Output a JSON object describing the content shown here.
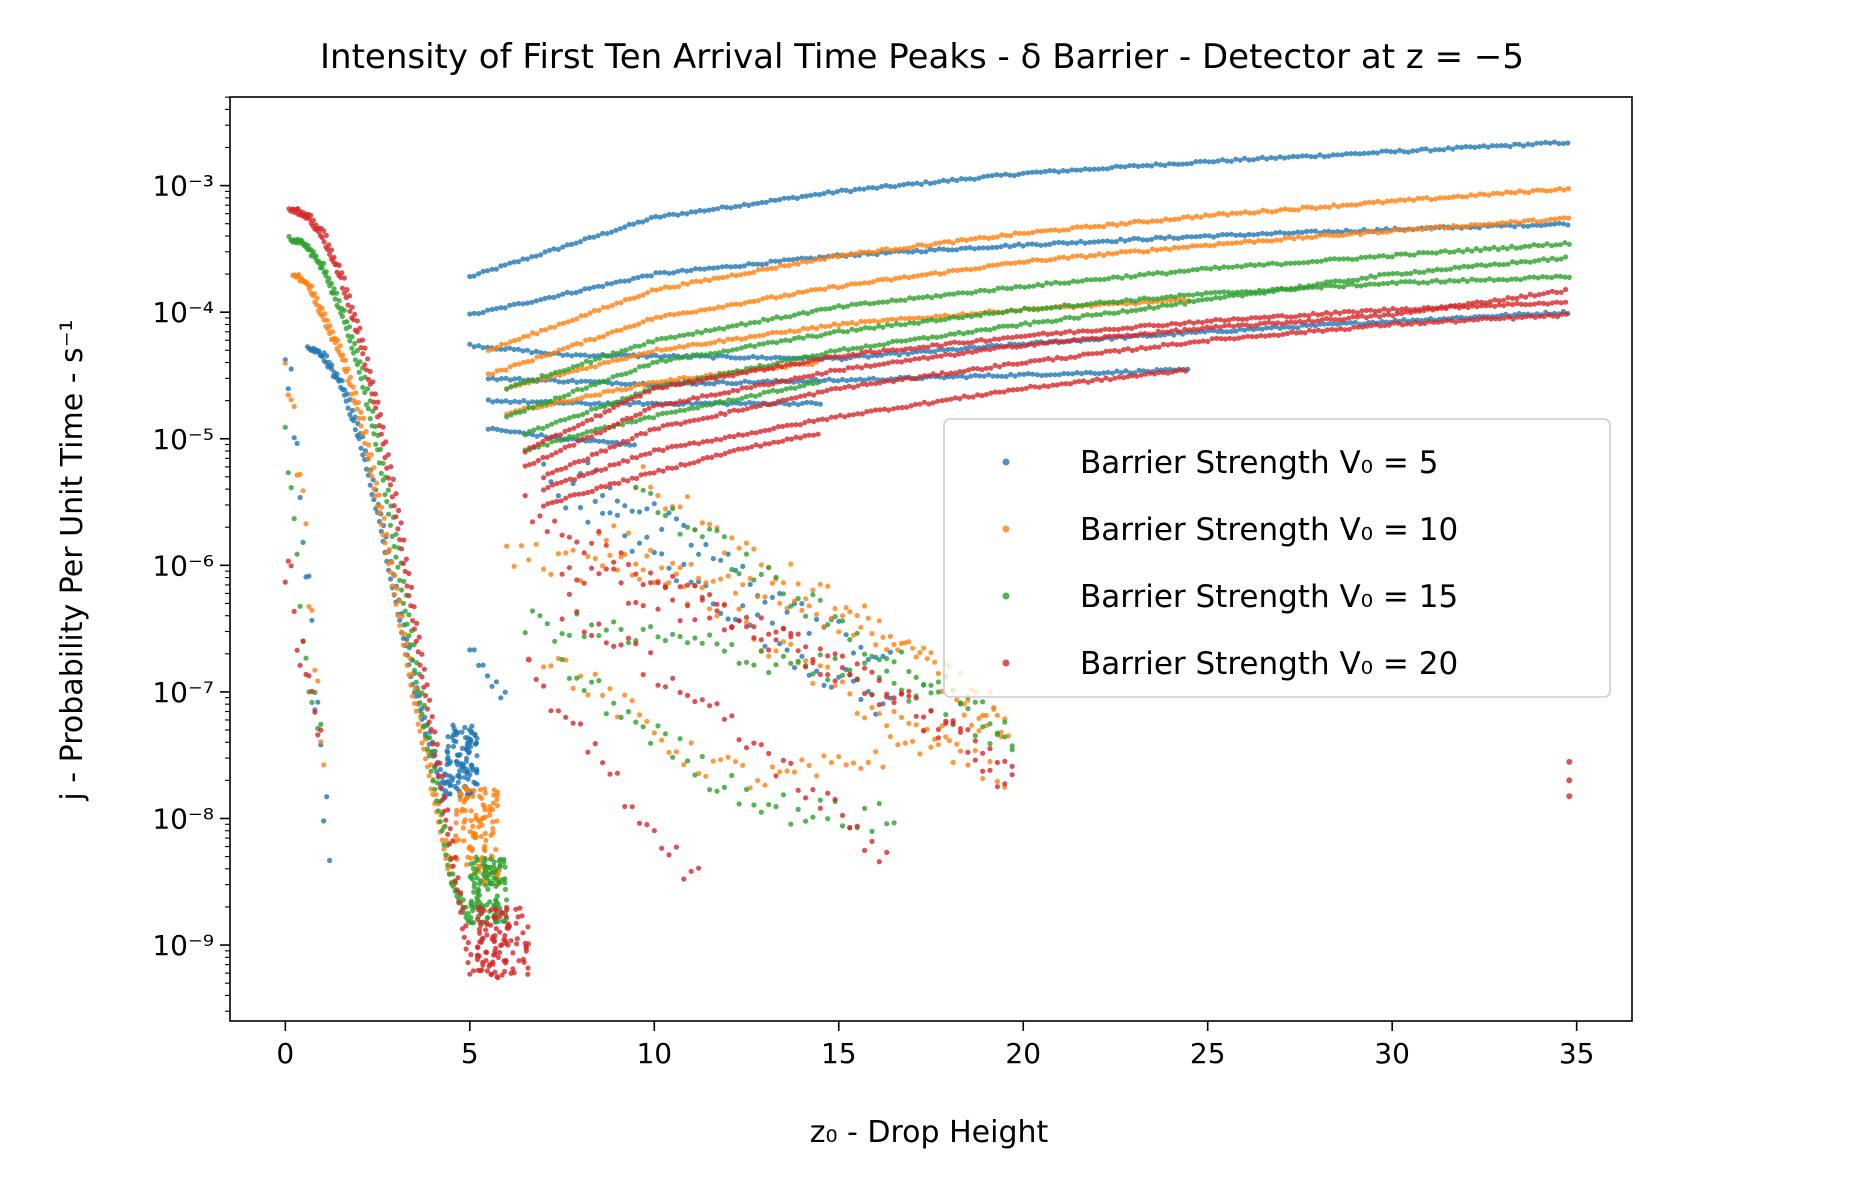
{
  "chart_data": {
    "type": "scatter",
    "title": "Intensity of First Ten Arrival Time Peaks - δ Barrier - Detector at z = −5",
    "xlabel": "z₀ - Drop Height",
    "ylabel": "j - Probability Per Unit Time - s⁻¹",
    "xlim": [
      -1.5,
      36.5
    ],
    "ylim_log10": [
      -9.6,
      -2.3
    ],
    "yscale": "log",
    "grid": false,
    "legend_position": "center-right",
    "x_ticks": [
      0,
      5,
      10,
      15,
      20,
      25,
      30,
      35
    ],
    "x_tick_labels": [
      "0",
      "5",
      "10",
      "15",
      "20",
      "25",
      "30",
      "35"
    ],
    "y_ticks_log10": [
      -9,
      -8,
      -7,
      -6,
      -5,
      -4,
      -3
    ],
    "y_tick_labels": [
      "10⁻⁹",
      "10⁻⁸",
      "10⁻⁷",
      "10⁻⁶",
      "10⁻⁵",
      "10⁻⁴",
      "10⁻³"
    ],
    "series": [
      {
        "name": "Barrier Strength V₀ = 5",
        "color": "#1f77b4",
        "upper_branches": [
          {
            "x": [
              5.0,
              10,
              15,
              20,
              25,
              30,
              34.8
            ],
            "y": [
              0.00019,
              0.00056,
              0.0009,
              0.00125,
              0.00155,
              0.00185,
              0.0022
            ]
          },
          {
            "x": [
              5.0,
              10,
              15,
              20,
              25,
              30,
              34.8
            ],
            "y": [
              9.5e-05,
              0.0002,
              0.00028,
              0.00034,
              0.0004,
              0.00045,
              0.0005
            ]
          },
          {
            "x": [
              5.0,
              7.5,
              10,
              15,
              20,
              25,
              30,
              34.8
            ],
            "y": [
              5.5e-05,
              4.6e-05,
              4.5e-05,
              4.3e-05,
              5.6e-05,
              7e-05,
              8.5e-05,
              0.0001
            ]
          },
          {
            "x": [
              5.5,
              10,
              15,
              20,
              24.5
            ],
            "y": [
              3e-05,
              2.7e-05,
              2.9e-05,
              3.2e-05,
              3.5e-05
            ]
          },
          {
            "x": [
              5.5,
              8,
              10,
              12,
              14.5
            ],
            "y": [
              2e-05,
              1.9e-05,
              1.9e-05,
              1.9e-05,
              1.9e-05
            ]
          },
          {
            "x": [
              5.5,
              6.5,
              7.5,
              8.5,
              9.5
            ],
            "y": [
              1.2e-05,
              1.1e-05,
              1e-05,
              9.5e-06,
              9e-06
            ]
          }
        ],
        "decay_branches": [
          {
            "x": [
              7.0,
              8.5,
              10,
              11.5,
              13,
              14.5,
              16.5
            ],
            "y": [
              5e-06,
              2.5e-06,
              1.2e-06,
              6e-07,
              3e-07,
              1.5e-07,
              7e-08
            ]
          },
          {
            "x": [
              8.0,
              9.5,
              11,
              12.5,
              14,
              15.5,
              16.5
            ],
            "y": [
              6e-06,
              3e-06,
              1.5e-06,
              8e-07,
              4e-07,
              2.5e-07,
              1.5e-07
            ]
          }
        ],
        "peak_branch": {
          "x": [
            0.6,
            1.0,
            1.5,
            2.0,
            2.5,
            3.0,
            3.5,
            4.0,
            4.3
          ],
          "y": [
            5.3e-05,
            4.5e-05,
            2.6e-05,
            1e-05,
            2.5e-06,
            5e-07,
            1e-07,
            3e-08,
            1.5e-08
          ]
        },
        "near_zero": {
          "x": [
            0.0,
            0.2,
            0.4,
            0.6,
            0.8,
            1.0,
            1.2
          ],
          "y": [
            7e-05,
            2e-05,
            5e-06,
            1e-06,
            1e-07,
            2e-08,
            7e-09
          ]
        },
        "cluster": {
          "x": [
            4.3,
            5.2
          ],
          "y": [
            1.5e-08,
            5.5e-08
          ]
        },
        "bridge": {
          "x": [
            5.0,
            5.4,
            5.8,
            6.0
          ],
          "y": [
            2.4e-07,
            1.5e-07,
            1e-07,
            1e-07
          ]
        }
      },
      {
        "name": "Barrier Strength V₀ = 10",
        "color": "#ff7f0e",
        "upper_branches": [
          {
            "x": [
              5.5,
              10,
              15,
              20,
              25,
              30,
              34.8
            ],
            "y": [
              5e-05,
              0.00015,
              0.00028,
              0.00042,
              0.00058,
              0.00075,
              0.00095
            ]
          },
          {
            "x": [
              5.5,
              10,
              15,
              20,
              25,
              30,
              34.8
            ],
            "y": [
              3.2e-05,
              9e-05,
              0.00016,
              0.00025,
              0.00034,
              0.00044,
              0.00055
            ]
          },
          {
            "x": [
              6.0,
              10,
              15,
              20,
              24.5
            ],
            "y": [
              2.5e-05,
              5e-05,
              8e-05,
              0.000105,
              0.000125
            ]
          },
          {
            "x": [
              6.0,
              8,
              10,
              12,
              14.5
            ],
            "y": [
              1.6e-05,
              2.1e-05,
              2.8e-05,
              3.3e-05,
              4e-05
            ]
          }
        ],
        "decay_branches": [
          {
            "x": [
              6.0,
              8,
              10,
              12,
              14,
              16,
              18,
              19.7
            ],
            "y": [
              1.3e-06,
              1e-06,
              9e-07,
              7e-07,
              5e-07,
              3e-07,
              1.2e-07,
              5e-08
            ]
          },
          {
            "x": [
              7.0,
              9,
              11,
              13,
              15,
              17,
              19.5
            ],
            "y": [
              2e-07,
              8e-08,
              3e-08,
              2e-08,
              2.5e-08,
              4e-08,
              6e-08
            ]
          },
          {
            "x": [
              8.5,
              10,
              11.5,
              13,
              14.5,
              16,
              17.5,
              19.5
            ],
            "y": [
              2e-06,
              1e-06,
              5e-07,
              2.5e-07,
              1.3e-07,
              7e-08,
              4e-08,
              2e-08
            ]
          },
          {
            "x": [
              9.5,
              11,
              12.5,
              14,
              15.5,
              17,
              18,
              19.5
            ],
            "y": [
              5e-06,
              2.5e-06,
              1.2e-06,
              7e-07,
              4e-07,
              2e-07,
              1.2e-07,
              7e-08
            ]
          }
        ],
        "peak_branch": {
          "x": [
            0.2,
            0.6,
            1.0,
            1.5,
            2.0,
            2.5,
            3.0,
            3.5,
            4.0,
            4.5
          ],
          "y": [
            0.0002,
            0.00016,
            9e-05,
            4.5e-05,
            1.5e-05,
            3e-06,
            5e-07,
            8e-08,
            1.5e-08,
            3e-09
          ]
        },
        "near_zero": {
          "x": [
            0.0,
            0.2,
            0.4,
            0.6,
            0.8,
            1.0,
            1.1
          ],
          "y": [
            4e-05,
            1.5e-05,
            4e-06,
            1e-06,
            2e-07,
            5e-08,
            3e-08
          ]
        },
        "cluster": {
          "x": [
            4.6,
            5.8
          ],
          "y": [
            3e-09,
            1.8e-08
          ]
        }
      },
      {
        "name": "Barrier Strength V₀ = 15",
        "color": "#2ca02c",
        "upper_branches": [
          {
            "x": [
              6.0,
              10,
              15,
              20,
              25,
              30,
              34.8
            ],
            "y": [
              2.5e-05,
              6e-05,
              0.00011,
              0.00016,
              0.00022,
              0.00028,
              0.00035
            ]
          },
          {
            "x": [
              6.0,
              10,
              15,
              20,
              25,
              30,
              34.8
            ],
            "y": [
              1.5e-05,
              4e-05,
              7e-05,
              0.000105,
              0.00014,
              0.00017,
              0.00019
            ]
          },
          {
            "x": [
              6.5,
              10,
              15,
              20,
              25,
              30,
              34.8
            ],
            "y": [
              1.1e-05,
              2.5e-05,
              5e-05,
              8e-05,
              0.000125,
              0.0002,
              0.00027
            ]
          },
          {
            "x": [
              6.5,
              8,
              10,
              12,
              14.5
            ],
            "y": [
              8e-06,
              1.1e-05,
              1.5e-05,
              2e-05,
              2.8e-05
            ]
          }
        ],
        "decay_branches": [
          {
            "x": [
              6.5,
              8.5,
              10.5,
              12.5,
              14.5,
              16.5,
              18.5,
              19.7
            ],
            "y": [
              3.5e-07,
              3e-07,
              2.5e-07,
              2e-07,
              1.6e-07,
              1.1e-07,
              6e-08,
              3.5e-08
            ]
          },
          {
            "x": [
              7.5,
              9.5,
              11.5,
              13.5,
              15.5,
              16.5
            ],
            "y": [
              1.5e-07,
              6e-08,
              2.2e-08,
              1.2e-08,
              1e-08,
              1e-08
            ]
          },
          {
            "x": [
              9.5,
              11,
              12.5,
              14,
              15.5,
              17,
              18.5,
              19.7
            ],
            "y": [
              4e-06,
              2e-06,
              1e-06,
              5e-07,
              2.8e-07,
              1.5e-07,
              8e-08,
              5e-08
            ]
          }
        ],
        "peak_branch": {
          "x": [
            0.1,
            0.5,
            1.0,
            1.5,
            2.0,
            2.5,
            3.0,
            3.5,
            4.0,
            4.5,
            5.0
          ],
          "y": [
            0.00038,
            0.00035,
            0.00022,
            0.0001,
            3.5e-05,
            8e-06,
            1.2e-06,
            1.5e-07,
            2e-08,
            3e-09,
            1.5e-09
          ]
        },
        "near_zero": {
          "x": [
            0.0,
            0.2,
            0.4,
            0.6,
            0.8,
            1.0
          ],
          "y": [
            7e-06,
            2e-06,
            6e-07,
            2e-07,
            9e-08,
            6e-08
          ]
        },
        "cluster": {
          "x": [
            5.0,
            6.0
          ],
          "y": [
            1.5e-09,
            5e-09
          ]
        }
      },
      {
        "name": "Barrier Strength V₀ = 20",
        "color": "#d62728",
        "upper_branches": [
          {
            "x": [
              6.5,
              10,
              15,
              20,
              25,
              30,
              34.8
            ],
            "y": [
              8e-06,
              2.5e-05,
              4.5e-05,
              6.5e-05,
              8.5e-05,
              0.000105,
              0.00012
            ]
          },
          {
            "x": [
              6.5,
              10,
              15,
              20,
              25,
              30,
              34.8
            ],
            "y": [
              6e-06,
              1.8e-05,
              3.5e-05,
              5.5e-05,
              7.5e-05,
              9.5e-05,
              0.00015
            ]
          },
          {
            "x": [
              7.0,
              10,
              15,
              20,
              25,
              30,
              34.8
            ],
            "y": [
              5e-06,
              1.2e-05,
              2.5e-05,
              4e-05,
              6e-05,
              8e-05,
              9.5e-05
            ]
          },
          {
            "x": [
              7.0,
              10,
              15,
              20,
              24.5
            ],
            "y": [
              4e-06,
              8e-06,
              1.5e-05,
              2.5e-05,
              3.5e-05
            ]
          },
          {
            "x": [
              7.0,
              9,
              11,
              12.5,
              14.5
            ],
            "y": [
              3e-06,
              4.5e-06,
              6.5e-06,
              8.5e-06,
              1.1e-05
            ]
          }
        ],
        "decay_branches": [
          {
            "x": [
              6.5,
              8.5,
              10.5,
              12.5,
              14.5,
              16.5,
              18.5,
              19.7
            ],
            "y": [
              3e-06,
              1.4e-06,
              7e-07,
              3.5e-07,
              1.8e-07,
              9e-08,
              4e-08,
              1.8e-08
            ]
          },
          {
            "x": [
              6.8,
              8.5,
              10,
              11.3
            ],
            "y": [
              1e-07,
              3e-08,
              8e-09,
              3e-09
            ]
          },
          {
            "x": [
              7.5,
              9.5,
              11.5,
              13.5,
              15.5,
              16.3
            ],
            "y": [
              5e-07,
              2e-07,
              7e-08,
              2.5e-08,
              8e-09,
              5e-09
            ]
          },
          {
            "x": [
              7.5,
              9,
              10.5,
              12,
              13.5,
              15,
              16.5,
              18,
              19.7
            ],
            "y": [
              1e-06,
              7e-07,
              5e-07,
              3.5e-07,
              2.5e-07,
              1.6e-07,
              1e-07,
              5e-08,
              2e-08
            ]
          }
        ],
        "peak_branch": {
          "x": [
            0.1,
            0.5,
            1.0,
            1.5,
            2.0,
            2.5,
            3.0,
            3.5,
            4.0,
            4.5,
            5.0
          ],
          "y": [
            0.00065,
            0.0006,
            0.0004,
            0.00018,
            6e-05,
            1.5e-05,
            2.5e-06,
            3e-07,
            4e-08,
            5e-09,
            6e-10
          ]
        },
        "near_zero": {
          "x": [
            0.0,
            0.2,
            0.4,
            0.6,
            0.8,
            1.0
          ],
          "y": [
            1e-06,
            5e-07,
            2.5e-07,
            1.2e-07,
            7e-08,
            4e-08
          ]
        },
        "cluster": {
          "x": [
            5.2,
            6.6
          ],
          "y": [
            5.5e-10,
            2e-09
          ]
        },
        "isolated_points": [
          {
            "x": 6.6,
            "y": 1.8e-07
          },
          {
            "x": 34.8,
            "y": 2.8e-08
          },
          {
            "x": 34.8,
            "y": 2e-08
          },
          {
            "x": 34.8,
            "y": 1.5e-08
          }
        ]
      }
    ]
  }
}
